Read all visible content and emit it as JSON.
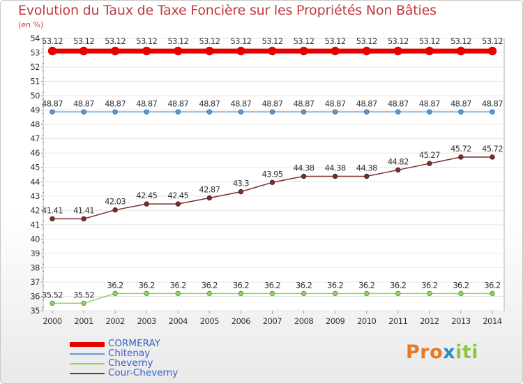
{
  "chart_data": {
    "type": "line",
    "title": "Evolution du Taux de Taxe Foncière sur les Propriétés Non Bâties",
    "ylabel": "(en %)",
    "x": [
      "2000",
      "2001",
      "2002",
      "2003",
      "2004",
      "2005",
      "2006",
      "2007",
      "2008",
      "2009",
      "2010",
      "2011",
      "2012",
      "2013",
      "2014"
    ],
    "ylim": [
      35,
      54
    ],
    "yticks": [
      35,
      36,
      37,
      38,
      39,
      40,
      41,
      42,
      43,
      44,
      45,
      46,
      47,
      48,
      49,
      50,
      51,
      52,
      53,
      54
    ],
    "series": [
      {
        "name": "CORMERAY",
        "color": "#e60000",
        "values": [
          53.12,
          53.12,
          53.12,
          53.12,
          53.12,
          53.12,
          53.12,
          53.12,
          53.12,
          53.12,
          53.12,
          53.12,
          53.12,
          53.12,
          53.12
        ],
        "labels": [
          "53.12",
          "53.12",
          "53.12",
          "53.12",
          "53.12",
          "53.12",
          "53.12",
          "53.12",
          "53.12",
          "53.12",
          "53.12",
          "53.12",
          "53.12",
          "53.12",
          "53.12"
        ]
      },
      {
        "name": "Chitenay",
        "color": "#5b9bd5",
        "values": [
          48.87,
          48.87,
          48.87,
          48.87,
          48.87,
          48.87,
          48.87,
          48.87,
          48.87,
          48.87,
          48.87,
          48.87,
          48.87,
          48.87,
          48.87
        ],
        "labels": [
          "48.87",
          "48.87",
          "48.87",
          "48.87",
          "48.87",
          "48.87",
          "48.87",
          "48.87",
          "48.87",
          "48.87",
          "48.87",
          "48.87",
          "48.87",
          "48.87",
          "48.87"
        ]
      },
      {
        "name": "Cheverny",
        "color": "#8fd16a",
        "values": [
          35.52,
          35.52,
          36.2,
          36.2,
          36.2,
          36.2,
          36.2,
          36.2,
          36.2,
          36.2,
          36.2,
          36.2,
          36.2,
          36.2,
          36.2
        ],
        "labels": [
          "35.52",
          "35.52",
          "36.2",
          "36.2",
          "36.2",
          "36.2",
          "36.2",
          "36.2",
          "36.2",
          "36.2",
          "36.2",
          "36.2",
          "36.2",
          "36.2",
          "36.2"
        ]
      },
      {
        "name": "Cour-Cheverny",
        "color": "#7a2e2e",
        "values": [
          41.41,
          41.41,
          42.03,
          42.45,
          42.45,
          42.87,
          43.3,
          43.95,
          44.38,
          44.38,
          44.38,
          44.82,
          45.27,
          45.72,
          45.72
        ],
        "labels": [
          "41.41",
          "41.41",
          "42.03",
          "42.45",
          "42.45",
          "42.87",
          "43.3",
          "43.95",
          "44.38",
          "44.38",
          "44.38",
          "44.82",
          "45.27",
          "45.72",
          "45.72"
        ]
      }
    ],
    "legend_position": "bottom-left"
  },
  "logo": {
    "part1": "Pro",
    "part2": "x",
    "part3": "iti"
  }
}
